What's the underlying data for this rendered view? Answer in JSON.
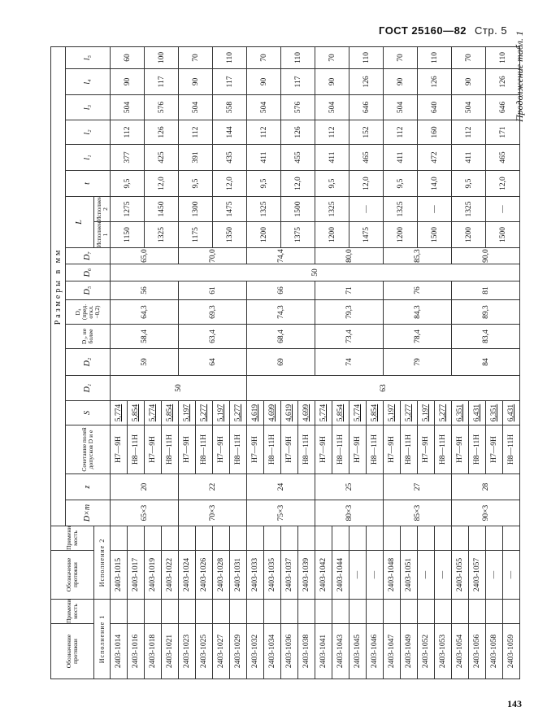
{
  "header": {
    "standard": "ГОСТ 25160—82",
    "page_label": "Стр. 5",
    "continuation": "Продолжение табл. 1",
    "page_number": "143"
  },
  "table": {
    "headers": {
      "designation": "Обозначение протяжки",
      "applicability": "Примени-мость",
      "version1": "Исполнение 1",
      "version2": "Исполнение 2",
      "dimensions_group": "Размеры в мм",
      "dxm": "D×m",
      "z": "z",
      "tolerance": "Сочетание полей допусков D и e",
      "s": "S",
      "d1": "D₁",
      "d2": "D₂",
      "d3": "D₃, не более",
      "d4": "D₄ (пред. откл. −0,2)",
      "d5": "D₅",
      "d6": "D₆",
      "d7": "D₇",
      "l": "L",
      "l_v1": "Исполнение 1",
      "l_v2": "Исполнение 2",
      "t": "t",
      "l1": "l₁",
      "l2": "l₂",
      "l3": "l₃",
      "l4": "l₄",
      "l5": "l₅"
    },
    "designation_v1": [
      "2403-1014",
      "2403-1016",
      "2403-1018",
      "2403-1021",
      "2403-1023",
      "2403-1025",
      "2403-1027",
      "2403-1029",
      "2403-1032",
      "2403-1034",
      "2403-1036",
      "2403-1038",
      "2403-1041",
      "2403-1043",
      "2403-1045",
      "2403-1046",
      "2403-1047",
      "2403-1049",
      "2403-1052",
      "2403-1053",
      "2403-1054",
      "2403-1056",
      "2403-1058",
      "2403-1059"
    ],
    "designation_v2": [
      "2403-1015",
      "2403-1017",
      "2403-1019",
      "2403-1022",
      "2403-1024",
      "2403-1026",
      "2403-1028",
      "2403-1031",
      "2403-1033",
      "2403-1035",
      "2403-1037",
      "2403-1039",
      "2403-1042",
      "2403-1044",
      "—",
      "—",
      "2403-1048",
      "2403-1051",
      "—",
      "—",
      "2403-1055",
      "2403-1057",
      "—",
      "—"
    ],
    "tolerance": [
      "H7—9H",
      "H8—11H",
      "H7—9H",
      "H8—11H",
      "H7—9H",
      "H8—11H",
      "H7—9H",
      "H8—11H",
      "H7—9H",
      "H8—11H",
      "H7—9H",
      "H8—11H",
      "H7—9H",
      "H8—11H",
      "H7—9H",
      "H8—11H",
      "H7—9H",
      "H8—11H",
      "H7—9H",
      "H8—11H",
      "H7—9H",
      "H8—11H",
      "H7—9H",
      "H8—11H"
    ],
    "s": [
      "5,774",
      "5,854",
      "5,774",
      "5,854",
      "5,197",
      "5,277",
      "5,197",
      "5,277",
      "4,619",
      "4,699",
      "4,619",
      "4,699",
      "5,774",
      "5,854",
      "5,774",
      "5,854",
      "5,197",
      "5,277",
      "5,197",
      "5,277",
      "6,351",
      "6,431",
      "6,351",
      "6,431"
    ],
    "dxm": [
      "65×3",
      "70×3",
      "75×3",
      "80×3",
      "85×3",
      "90×3"
    ],
    "z": [
      "20",
      "22",
      "24",
      "25",
      "27",
      "28"
    ],
    "d1": [
      "50",
      "63"
    ],
    "d2": [
      "59",
      "64",
      "69",
      "74",
      "79",
      "84"
    ],
    "d3": [
      "58,4",
      "63,4",
      "68,4",
      "73,4",
      "78,4",
      "83,4"
    ],
    "d4": [
      "64,3",
      "69,3",
      "74,3",
      "79,3",
      "84,3",
      "89,3"
    ],
    "d5": [
      "56",
      "61",
      "66",
      "71",
      "76",
      "81"
    ],
    "d6": "50",
    "d7": [
      "65,0",
      "70,0",
      "74,4",
      "80,0",
      "85,3",
      "90,0"
    ],
    "l_v1": [
      "1150",
      "1325",
      "1175",
      "1350",
      "1200",
      "1375",
      "1200",
      "1475",
      "1200",
      "1500",
      "1200",
      "1500"
    ],
    "l_v2": [
      "1275",
      "1450",
      "1300",
      "1475",
      "1325",
      "1500",
      "1325",
      "—",
      "1325",
      "—",
      "1325",
      "—"
    ],
    "t": [
      "9,5",
      "12,0",
      "9,5",
      "12,0",
      "9,5",
      "12,0",
      "9,5",
      "12,0",
      "9,5",
      "14,0",
      "9,5",
      "12,0"
    ],
    "l1": [
      "377",
      "425",
      "391",
      "435",
      "411",
      "455",
      "411",
      "465",
      "411",
      "472",
      "411",
      "465"
    ],
    "l2": [
      "112",
      "126",
      "112",
      "144",
      "112",
      "126",
      "112",
      "152",
      "112",
      "160",
      "112",
      "171"
    ],
    "l3": [
      "504",
      "576",
      "504",
      "558",
      "504",
      "576",
      "504",
      "646",
      "504",
      "640",
      "504",
      "646"
    ],
    "l4": [
      "90",
      "117",
      "90",
      "117",
      "90",
      "117",
      "90",
      "126",
      "90",
      "126",
      "90",
      "126"
    ],
    "l5": [
      "60",
      "100",
      "70",
      "110",
      "70",
      "110",
      "70",
      "110",
      "70",
      "110",
      "70",
      "110"
    ]
  }
}
